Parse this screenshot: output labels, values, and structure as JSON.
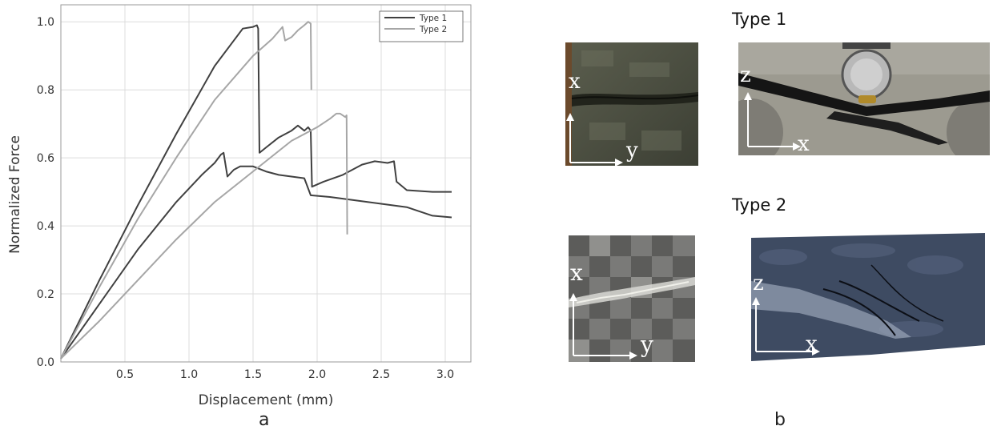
{
  "panel_a_label": "a",
  "panel_b_label": "b",
  "photos": {
    "type1_title": "Type 1",
    "type2_title": "Type 2",
    "type1_top_axes": {
      "a": "x",
      "b": "y"
    },
    "type1_side_axes": {
      "a": "z",
      "b": "x"
    },
    "type2_top_axes": {
      "a": "x",
      "b": "y"
    },
    "type2_side_axes": {
      "a": "z",
      "b": "x"
    }
  },
  "colors": {
    "type1": "#404040",
    "type2": "#a6a6a6",
    "grid": "#dcdcdc"
  },
  "chart_data": {
    "type": "line",
    "title": "",
    "xlabel": "Displacement (mm)",
    "ylabel": "Normalized Force",
    "xlim": [
      0.0,
      3.2
    ],
    "ylim": [
      0.0,
      1.05
    ],
    "xticks": [
      0.5,
      1.0,
      1.5,
      2.0,
      2.5,
      3.0
    ],
    "xtick_labels": [
      "0.5",
      "1.0",
      "1.5",
      "2.0",
      "2.5",
      "3.0"
    ],
    "yticks": [
      0.0,
      0.2,
      0.4,
      0.6,
      0.8,
      1.0
    ],
    "ytick_labels": [
      "0.0",
      "0.2",
      "0.4",
      "0.6",
      "0.8",
      "1.0"
    ],
    "grid": true,
    "legend_position": "top-right",
    "series": [
      {
        "name": "Type 1",
        "color": "#404040",
        "x": [
          0.0,
          0.3,
          0.6,
          0.9,
          1.2,
          1.42,
          1.5,
          1.53,
          1.54,
          1.55,
          1.6,
          1.7,
          1.8,
          1.85,
          1.9,
          1.93,
          1.95,
          1.96,
          2.05,
          2.2,
          2.35,
          2.45,
          2.55,
          2.6,
          2.62,
          2.7,
          2.9,
          3.05
        ],
        "y": [
          0.01,
          0.24,
          0.46,
          0.67,
          0.87,
          0.98,
          0.985,
          0.99,
          0.98,
          0.615,
          0.63,
          0.66,
          0.68,
          0.695,
          0.68,
          0.69,
          0.68,
          0.515,
          0.53,
          0.55,
          0.58,
          0.59,
          0.585,
          0.59,
          0.53,
          0.505,
          0.5,
          0.5
        ]
      },
      {
        "name": "Type 1",
        "color": "#404040",
        "x": [
          0.0,
          0.3,
          0.6,
          0.9,
          1.1,
          1.2,
          1.25,
          1.27,
          1.3,
          1.35,
          1.4,
          1.5,
          1.6,
          1.7,
          1.8,
          1.9,
          1.95,
          2.1,
          2.3,
          2.5,
          2.7,
          2.9,
          3.05
        ],
        "y": [
          0.01,
          0.17,
          0.33,
          0.47,
          0.55,
          0.585,
          0.61,
          0.615,
          0.545,
          0.565,
          0.575,
          0.575,
          0.56,
          0.55,
          0.545,
          0.54,
          0.49,
          0.485,
          0.475,
          0.465,
          0.455,
          0.43,
          0.425
        ]
      },
      {
        "name": "Type 2",
        "color": "#a6a6a6",
        "x": [
          0.0,
          0.3,
          0.6,
          0.9,
          1.2,
          1.5,
          1.65,
          1.73,
          1.75,
          1.8,
          1.85,
          1.9,
          1.93,
          1.95,
          1.955
        ],
        "y": [
          0.01,
          0.22,
          0.42,
          0.6,
          0.77,
          0.9,
          0.95,
          0.985,
          0.945,
          0.955,
          0.975,
          0.99,
          1.0,
          0.995,
          0.8
        ]
      },
      {
        "name": "Type 2",
        "color": "#a6a6a6",
        "x": [
          0.0,
          0.3,
          0.6,
          0.9,
          1.2,
          1.5,
          1.8,
          2.0,
          2.1,
          2.15,
          2.18,
          2.22,
          2.23,
          2.235
        ],
        "y": [
          0.01,
          0.12,
          0.24,
          0.36,
          0.47,
          0.56,
          0.65,
          0.69,
          0.715,
          0.73,
          0.73,
          0.72,
          0.725,
          0.375
        ]
      }
    ]
  }
}
